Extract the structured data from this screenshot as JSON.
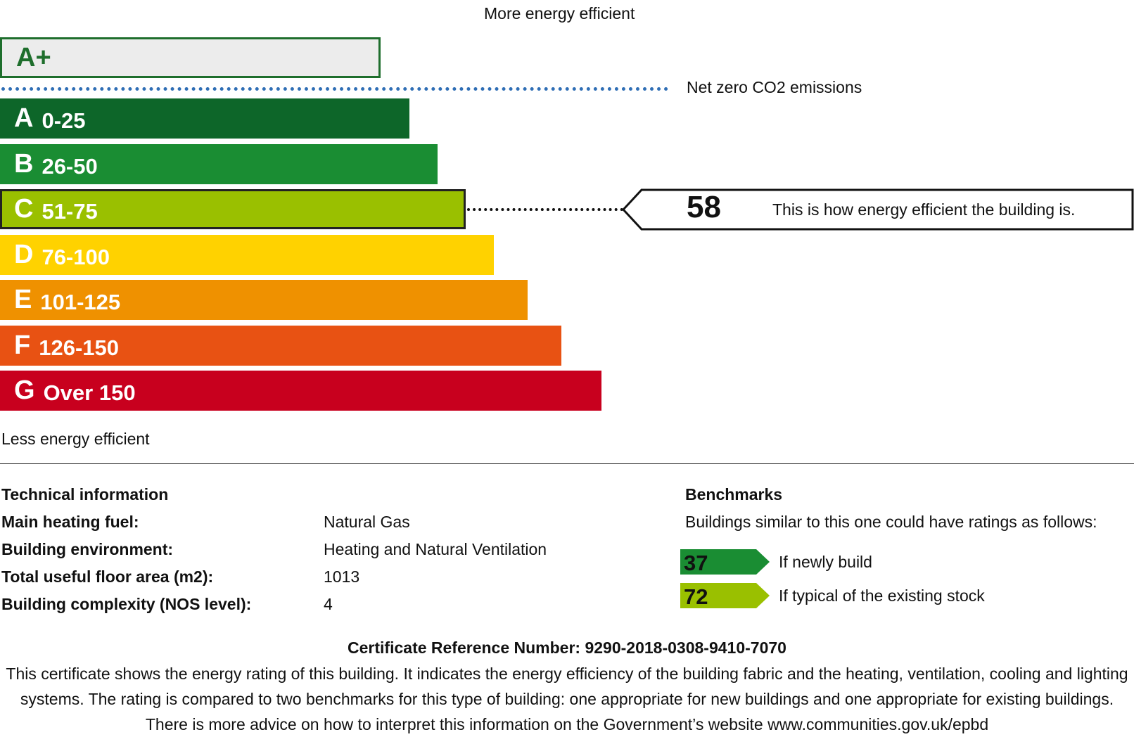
{
  "labels": {
    "more_efficient": "More energy efficient",
    "less_efficient": "Less energy efficient",
    "net_zero": "Net zero CO2 emissions"
  },
  "chart_data": {
    "type": "bar",
    "orientation": "horizontal",
    "aplus": {
      "letter": "A+",
      "color": "#ececec",
      "border": "#1e6e2c"
    },
    "bands": [
      {
        "letter": "A",
        "range": "0-25",
        "color": "#0d6629"
      },
      {
        "letter": "B",
        "range": "26-50",
        "color": "#1a8d33"
      },
      {
        "letter": "C",
        "range": "51-75",
        "color": "#9ac000"
      },
      {
        "letter": "D",
        "range": "76-100",
        "color": "#ffd200"
      },
      {
        "letter": "E",
        "range": "101-125",
        "color": "#ef9100"
      },
      {
        "letter": "F",
        "range": "126-150",
        "color": "#e85213"
      },
      {
        "letter": "G",
        "range": "Over 150",
        "color": "#c8001e"
      }
    ],
    "current_rating": {
      "value": 58,
      "band": "C",
      "text": "This is how energy efficient the building is."
    }
  },
  "technical": {
    "heading": "Technical information",
    "rows": [
      {
        "label": "Main heating fuel:",
        "value": "Natural Gas"
      },
      {
        "label": "Building environment:",
        "value": "Heating and Natural Ventilation"
      },
      {
        "label": "Total useful floor area (m2):",
        "value": "1013"
      },
      {
        "label": "Building complexity (NOS level):",
        "value": "4"
      }
    ]
  },
  "benchmarks": {
    "heading": "Benchmarks",
    "intro": "Buildings similar to this one could have ratings as follows:",
    "items": [
      {
        "value": "37",
        "label": "If newly build",
        "color": "#1a8d33"
      },
      {
        "value": "72",
        "label": "If typical of the existing stock",
        "color": "#9ac000"
      }
    ]
  },
  "footer": {
    "reference": "Certificate Reference Number: 9290-2018-0308-9410-7070",
    "paragraph": "This certificate shows the energy rating of this building. It indicates the energy efficiency of the building fabric and the heating, ventilation, cooling and lighting systems. The rating is compared to two benchmarks for this type of building: one appropriate for new buildings and one appropriate for existing buildings. There is more advice on how to interpret this information on the Government’s website www.communities.gov.uk/epbd"
  }
}
